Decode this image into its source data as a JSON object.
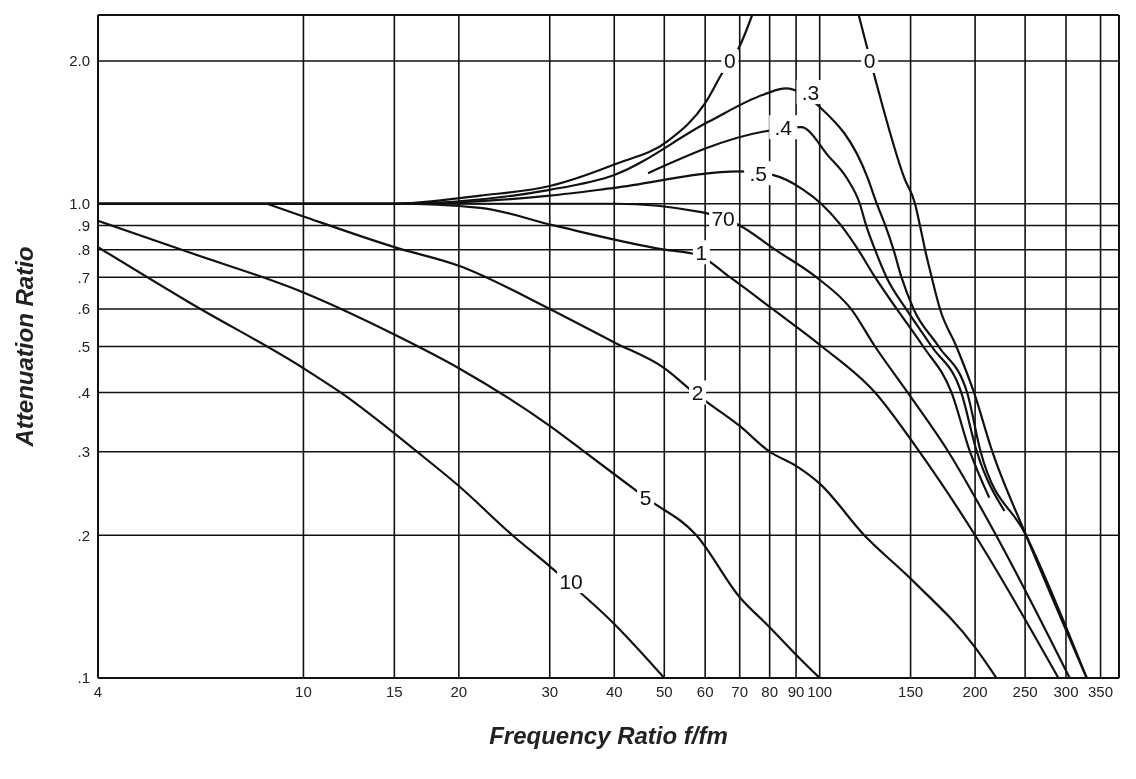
{
  "chart_data": {
    "type": "line",
    "xlabel": "Frequency Ratio f/fm",
    "ylabel": "Attenuation Ratio",
    "log": "xy",
    "grid": true,
    "xlim": [
      4,
      380
    ],
    "xticks": [
      4,
      10,
      15,
      20,
      30,
      40,
      50,
      60,
      70,
      80,
      90,
      100,
      150,
      200,
      250,
      300,
      350
    ],
    "ylim": [
      0.1,
      2.5
    ],
    "yticks": [
      {
        "value": 0.1,
        "label": ".1"
      },
      {
        "value": 0.2,
        "label": ".2"
      },
      {
        "value": 0.3,
        "label": ".3"
      },
      {
        "value": 0.4,
        "label": ".4"
      },
      {
        "value": 0.5,
        "label": ".5"
      },
      {
        "value": 0.6,
        "label": ".6"
      },
      {
        "value": 0.7,
        "label": ".7"
      },
      {
        "value": 0.8,
        "label": ".8"
      },
      {
        "value": 0.9,
        "label": ".9"
      },
      {
        "value": 1.0,
        "label": "1.0"
      },
      {
        "value": 2.0,
        "label": "2.0"
      }
    ],
    "series": [
      {
        "color": "#111111",
        "x": [
          4,
          15,
          22,
          30,
          40,
          51,
          60,
          65,
          70,
          74
        ],
        "values": [
          1,
          1,
          1.04,
          1.09,
          1.21,
          1.36,
          1.63,
          1.9,
          2.15,
          2.5
        ]
      },
      {
        "color": "#111111",
        "x": [
          119,
          127,
          146,
          153,
          156.4,
          160,
          164.8,
          171,
          184,
          199,
          216,
          251,
          329
        ],
        "values": [
          2.5,
          1.9,
          1.13,
          1.0,
          0.9,
          0.8,
          0.7,
          0.6,
          0.5,
          0.4,
          0.3,
          0.2,
          0.1
        ]
      },
      {
        "color": "#111111",
        "x": [
          4,
          15,
          30,
          40,
          61,
          78,
          86,
          100,
          124,
          129,
          134,
          139,
          144,
          152,
          170,
          193,
          205,
          251,
          329
        ],
        "values": [
          1,
          1,
          1.07,
          1.15,
          1.49,
          1.7,
          1.75,
          1.6,
          1.13,
          1.0,
          0.9,
          0.8,
          0.7,
          0.6,
          0.5,
          0.4,
          0.3,
          0.2,
          0.1
        ]
      },
      {
        "color": "#111111",
        "x": [
          46.5,
          78,
          92,
          104,
          113,
          119.6,
          123,
          128,
          134.7,
          147,
          164.8,
          188,
          201.6,
          228
        ],
        "values": [
          1.16,
          1.42,
          1.45,
          1.26,
          1.13,
          1.0,
          0.9,
          0.8,
          0.7,
          0.6,
          0.5,
          0.4,
          0.3,
          0.225
        ]
      },
      {
        "color": "#111111",
        "x": [
          4,
          15,
          30,
          40,
          70,
          81,
          93,
          100.7,
          110,
          118.7,
          128,
          141,
          158.7,
          180,
          195.5,
          213
        ],
        "values": [
          1,
          1,
          1.04,
          1.08,
          1.17,
          1.15,
          1.07,
          1.0,
          0.9,
          0.8,
          0.7,
          0.6,
          0.5,
          0.4,
          0.3,
          0.24
        ]
      },
      {
        "color": "#111111",
        "x": [
          4,
          15,
          40,
          59,
          70,
          82,
          98.5,
          115,
          128,
          148,
          177.5,
          219.6,
          305
        ],
        "values": [
          1,
          1,
          1.0,
          0.96,
          0.9,
          0.8,
          0.7,
          0.6,
          0.5,
          0.4,
          0.3,
          0.2,
          0.1
        ]
      },
      {
        "color": "#111111",
        "x": [
          4,
          15,
          22,
          30.5,
          50,
          58,
          67,
          81,
          101,
          128,
          156,
          200,
          290
        ],
        "values": [
          1,
          1,
          0.98,
          0.9,
          0.8,
          0.78,
          0.7,
          0.6,
          0.5,
          0.4,
          0.3,
          0.2,
          0.1
        ]
      },
      {
        "color": "#111111",
        "x": [
          8.5,
          10,
          15,
          20,
          30,
          40,
          50,
          57,
          70,
          80,
          90,
          100,
          122,
          150,
          200,
          220
        ],
        "values": [
          1.0,
          0.94,
          0.81,
          0.74,
          0.6,
          0.51,
          0.45,
          0.4,
          0.34,
          0.3,
          0.28,
          0.257,
          0.2,
          0.162,
          0.116,
          0.1
        ]
      },
      {
        "color": "#111111",
        "x": [
          4,
          6,
          10,
          15,
          20,
          30,
          35,
          46,
          57.7,
          70,
          80,
          90,
          100
        ],
        "values": [
          0.92,
          0.79,
          0.65,
          0.53,
          0.45,
          0.34,
          0.3,
          0.24,
          0.2,
          0.148,
          0.128,
          0.112,
          0.1
        ]
      },
      {
        "color": "#111111",
        "x": [
          4,
          6,
          10,
          11.8,
          16.6,
          20,
          25.4,
          30,
          40,
          50
        ],
        "values": [
          0.81,
          0.62,
          0.45,
          0.4,
          0.3,
          0.254,
          0.2,
          0.172,
          0.13,
          0.1
        ]
      }
    ],
    "annotations": [
      {
        "text": "0",
        "x": 67,
        "y": 2.0
      },
      {
        "text": "0",
        "x": 125,
        "y": 2.0
      },
      {
        "text": ".3",
        "x": 96,
        "y": 1.72
      },
      {
        "text": ".4",
        "x": 85,
        "y": 1.45
      },
      {
        "text": ".5",
        "x": 76,
        "y": 1.16
      },
      {
        "text": "70",
        "x": 65,
        "y": 0.93
      },
      {
        "text": "1",
        "x": 59,
        "y": 0.79
      },
      {
        "text": "2",
        "x": 58,
        "y": 0.4
      },
      {
        "text": "5",
        "x": 46,
        "y": 0.24
      },
      {
        "text": "10",
        "x": 33,
        "y": 0.16
      }
    ]
  }
}
